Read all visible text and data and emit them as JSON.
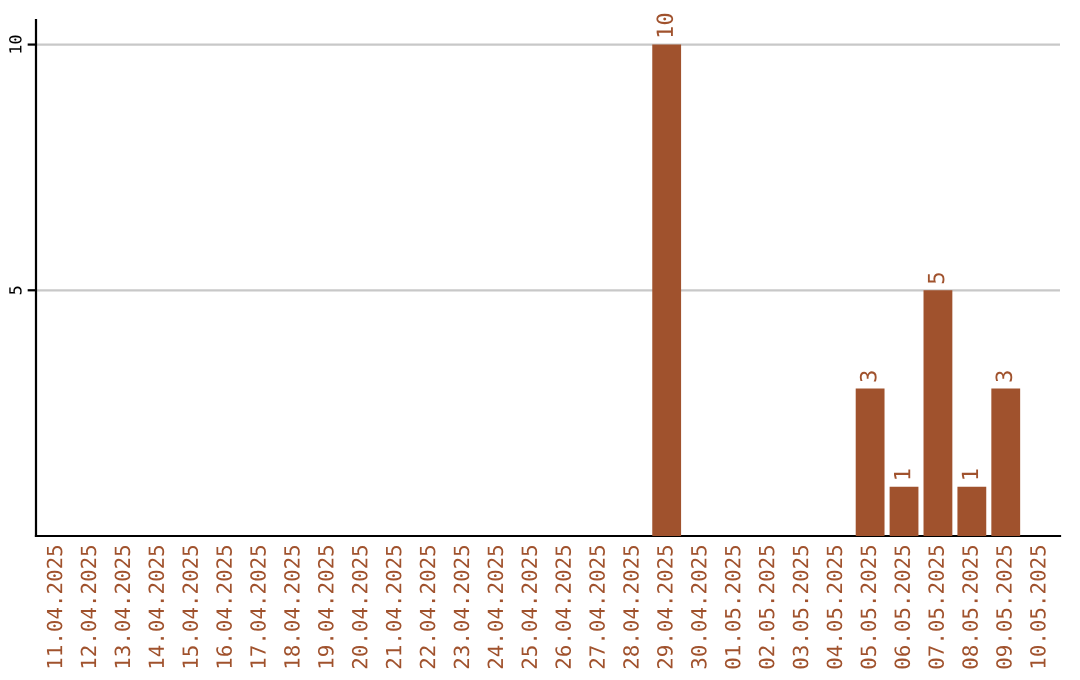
{
  "chart_data": {
    "type": "bar",
    "categories": [
      "11.04.2025",
      "12.04.2025",
      "13.04.2025",
      "14.04.2025",
      "15.04.2025",
      "16.04.2025",
      "17.04.2025",
      "18.04.2025",
      "19.04.2025",
      "20.04.2025",
      "21.04.2025",
      "22.04.2025",
      "23.04.2025",
      "24.04.2025",
      "25.04.2025",
      "26.04.2025",
      "27.04.2025",
      "28.04.2025",
      "29.04.2025",
      "30.04.2025",
      "01.05.2025",
      "02.05.2025",
      "03.05.2025",
      "04.05.2025",
      "05.05.2025",
      "06.05.2025",
      "07.05.2025",
      "08.05.2025",
      "09.05.2025",
      "10.05.2025"
    ],
    "values": [
      0,
      0,
      0,
      0,
      0,
      0,
      0,
      0,
      0,
      0,
      0,
      0,
      0,
      0,
      0,
      0,
      0,
      0,
      10,
      0,
      0,
      0,
      0,
      0,
      3,
      1,
      5,
      1,
      3,
      0
    ],
    "value_labels": [
      null,
      null,
      null,
      null,
      null,
      null,
      null,
      null,
      null,
      null,
      null,
      null,
      null,
      null,
      null,
      null,
      null,
      null,
      "10",
      null,
      null,
      null,
      null,
      null,
      "3",
      "1",
      "5",
      "1",
      "3",
      null
    ],
    "color": "#a0522d",
    "ylim": [
      0,
      10.5
    ],
    "yticks": [
      5,
      10
    ],
    "grid": "y"
  }
}
